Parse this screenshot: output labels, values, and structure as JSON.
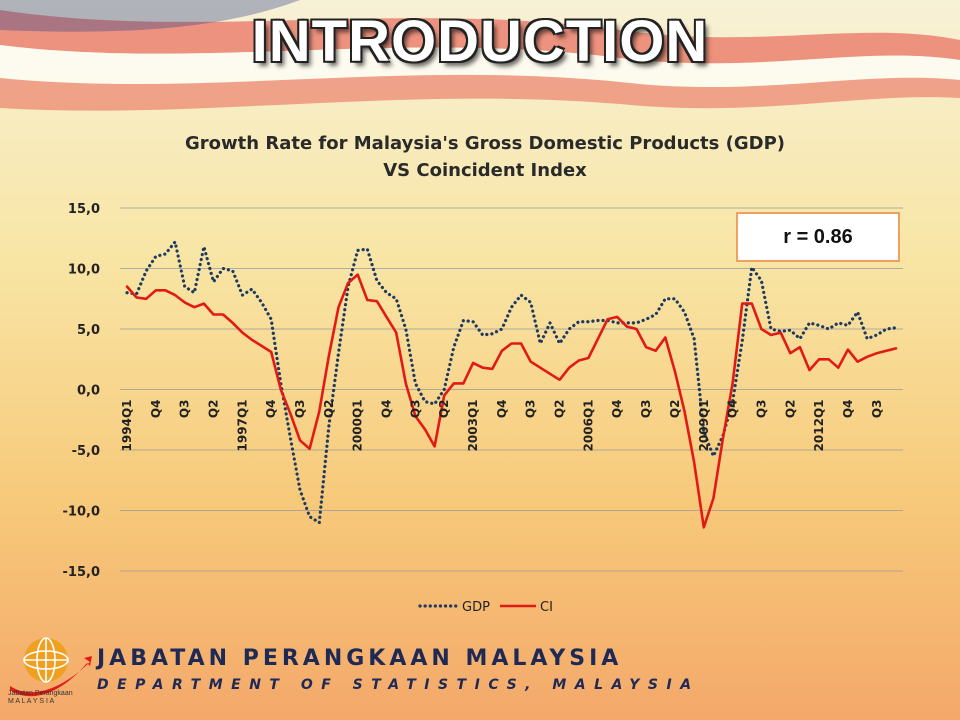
{
  "slide": {
    "title": "INTRODUCTION",
    "footer_main": "JABATAN PERANGKAAN MALAYSIA",
    "footer_sub": "DEPARTMENT OF STATISTICS, MALAYSIA",
    "logo_text_1": "Jabatan Perangkaan",
    "logo_text_2": "M A L A Y S I A",
    "logo_icon": "globe-icon"
  },
  "annotation": {
    "text": "r = 0.86"
  },
  "colors": {
    "gdp": "#1f3a60",
    "ci": "#e21a16",
    "grid": "#9a9a9a",
    "title_text": "#2a2a2a"
  },
  "chart_data": {
    "type": "line",
    "title_line1": "Growth Rate for Malaysia's Gross Domestic Products (GDP)",
    "title_line2": "VS Coincident Index",
    "ylim": [
      -15,
      15
    ],
    "yticks": [
      15,
      10,
      5,
      0,
      -5,
      -10,
      -15
    ],
    "ytick_labels": [
      "15,0",
      "10,0",
      "5,0",
      "0,0",
      "-5,0",
      "-10,0",
      "-15,0"
    ],
    "grid": "horizontal",
    "legend_position": "bottom",
    "x_tick_labels": [
      {
        "i": 0,
        "label": "1994Q1"
      },
      {
        "i": 3,
        "label": "Q4"
      },
      {
        "i": 6,
        "label": "Q3"
      },
      {
        "i": 9,
        "label": "Q2"
      },
      {
        "i": 12,
        "label": "1997Q1"
      },
      {
        "i": 15,
        "label": "Q4"
      },
      {
        "i": 18,
        "label": "Q3"
      },
      {
        "i": 21,
        "label": "Q2"
      },
      {
        "i": 24,
        "label": "2000Q1"
      },
      {
        "i": 27,
        "label": "Q4"
      },
      {
        "i": 30,
        "label": "Q3"
      },
      {
        "i": 33,
        "label": "Q2"
      },
      {
        "i": 36,
        "label": "2003Q1"
      },
      {
        "i": 39,
        "label": "Q4"
      },
      {
        "i": 42,
        "label": "Q3"
      },
      {
        "i": 45,
        "label": "Q2"
      },
      {
        "i": 48,
        "label": "2006Q1"
      },
      {
        "i": 51,
        "label": "Q4"
      },
      {
        "i": 54,
        "label": "Q3"
      },
      {
        "i": 57,
        "label": "Q2"
      },
      {
        "i": 60,
        "label": "2009Q1"
      },
      {
        "i": 63,
        "label": "Q4"
      },
      {
        "i": 66,
        "label": "Q3"
      },
      {
        "i": 69,
        "label": "Q2"
      },
      {
        "i": 72,
        "label": "2012Q1"
      },
      {
        "i": 75,
        "label": "Q4"
      },
      {
        "i": 78,
        "label": "Q3"
      }
    ],
    "series": [
      {
        "name": "GDP",
        "style": "dotted",
        "values": [
          8.0,
          7.9,
          9.8,
          11.0,
          11.2,
          12.2,
          8.5,
          8.0,
          11.8,
          8.9,
          10.0,
          9.8,
          7.8,
          8.3,
          7.2,
          5.8,
          0.5,
          -4.0,
          -8.3,
          -10.5,
          -11.0,
          -3.0,
          3.0,
          8.5,
          11.5,
          11.6,
          9.0,
          8.0,
          7.5,
          5.0,
          0.5,
          -1.0,
          -1.2,
          0.0,
          3.5,
          5.7,
          5.6,
          4.5,
          4.6,
          5.0,
          6.8,
          7.8,
          7.2,
          3.8,
          5.5,
          3.8,
          5.0,
          5.6,
          5.6,
          5.7,
          5.7,
          5.5,
          5.5,
          5.5,
          5.8,
          6.2,
          7.5,
          7.5,
          6.4,
          4.2,
          -3.5,
          -5.5,
          -3.8,
          -1.0,
          4.0,
          10.1,
          9.0,
          5.0,
          4.8,
          4.9,
          4.2,
          5.5,
          5.3,
          5.0,
          5.5,
          5.3,
          6.4,
          4.2,
          4.5,
          5.0,
          5.1
        ]
      },
      {
        "name": "CI",
        "style": "solid",
        "values": [
          8.5,
          7.6,
          7.5,
          8.2,
          8.2,
          7.8,
          7.2,
          6.8,
          7.1,
          6.2,
          6.2,
          5.5,
          4.7,
          4.1,
          3.6,
          3.1,
          0.0,
          -2.0,
          -4.2,
          -4.9,
          -1.8,
          2.8,
          6.8,
          8.8,
          9.5,
          7.4,
          7.3,
          6.0,
          4.7,
          0.5,
          -2.2,
          -3.3,
          -4.7,
          -0.5,
          0.5,
          0.5,
          2.2,
          1.8,
          1.7,
          3.2,
          3.8,
          3.8,
          2.3,
          1.8,
          1.3,
          0.8,
          1.8,
          2.4,
          2.6,
          4.2,
          5.8,
          6.0,
          5.2,
          5.0,
          3.5,
          3.2,
          4.3,
          1.5,
          -1.8,
          -6.0,
          -11.4,
          -9.0,
          -4.0,
          0.5,
          7.1,
          7.1,
          5.0,
          4.5,
          4.7,
          3.0,
          3.5,
          1.6,
          2.5,
          2.5,
          1.8,
          3.3,
          2.3,
          2.7,
          3.0,
          3.2,
          3.4
        ]
      }
    ]
  }
}
